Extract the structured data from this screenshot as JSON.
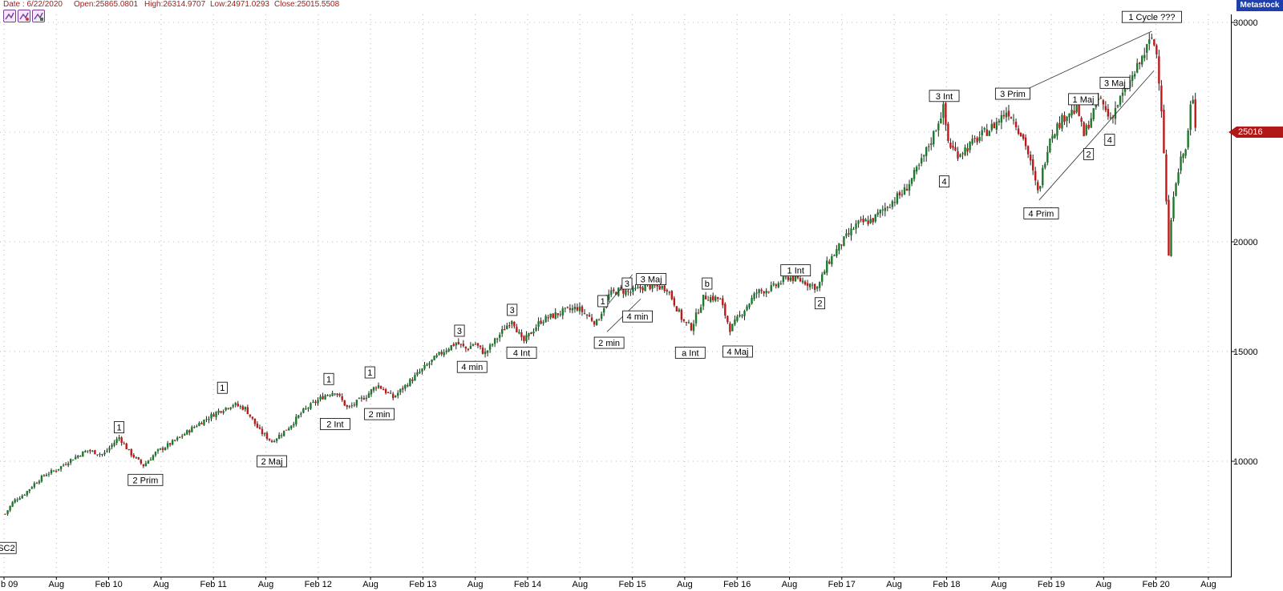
{
  "header": {
    "date": "Date : 6/22/2020",
    "open": "Open:25865.0801",
    "high": "High:26314.9707",
    "low": "Low:24971.0293",
    "close": "Close:25015.5508",
    "brand": "Metastock"
  },
  "toolbar": {
    "icons": [
      "chart-tool-icon-1",
      "chart-tool-icon-2",
      "chart-tool-icon-3"
    ]
  },
  "colors": {
    "up": "#1a7a2a",
    "down": "#c01818",
    "brand": "#1f3fae",
    "header_text": "#a02020",
    "grid": "#b8b8b8",
    "price_tag": "#b01818"
  },
  "current_price_label": "25016",
  "chart_data": {
    "type": "candlestick",
    "x_tick_labels": [
      "b 09",
      "Aug",
      "Feb 10",
      "Aug",
      "Feb 11",
      "Aug",
      "Feb 12",
      "Aug",
      "Feb 13",
      "Aug",
      "Feb 14",
      "Aug",
      "Feb 15",
      "Aug",
      "Feb 16",
      "Aug",
      "Feb 17",
      "Aug",
      "Feb 18",
      "Aug",
      "Feb 19",
      "Aug",
      "Feb 20",
      "Aug"
    ],
    "y_tick_labels": [
      "30000",
      "25000",
      "20000",
      "15000",
      "10000"
    ],
    "y_ticks": [
      30000,
      25000,
      20000,
      15000,
      10000
    ],
    "ylim": [
      5000,
      31000
    ],
    "xlim": [
      2009.12,
      2020.8
    ],
    "grid": true,
    "current_price": 25016,
    "series": [
      {
        "x": 2009.17,
        "y": 7600
      },
      {
        "x": 2009.25,
        "y": 8200
      },
      {
        "x": 2009.35,
        "y": 8500
      },
      {
        "x": 2009.45,
        "y": 9000
      },
      {
        "x": 2009.55,
        "y": 9400
      },
      {
        "x": 2009.65,
        "y": 9600
      },
      {
        "x": 2009.8,
        "y": 10100
      },
      {
        "x": 2009.95,
        "y": 10500
      },
      {
        "x": 2010.1,
        "y": 10300
      },
      {
        "x": 2010.25,
        "y": 11100
      },
      {
        "x": 2010.35,
        "y": 10400
      },
      {
        "x": 2010.48,
        "y": 9800
      },
      {
        "x": 2010.6,
        "y": 10400
      },
      {
        "x": 2010.8,
        "y": 11000
      },
      {
        "x": 2011.0,
        "y": 11700
      },
      {
        "x": 2011.2,
        "y": 12300
      },
      {
        "x": 2011.33,
        "y": 12600
      },
      {
        "x": 2011.45,
        "y": 12400
      },
      {
        "x": 2011.58,
        "y": 11400
      },
      {
        "x": 2011.7,
        "y": 10900
      },
      {
        "x": 2011.85,
        "y": 11500
      },
      {
        "x": 2012.0,
        "y": 12300
      },
      {
        "x": 2012.2,
        "y": 13000
      },
      {
        "x": 2012.3,
        "y": 13200
      },
      {
        "x": 2012.42,
        "y": 12400
      },
      {
        "x": 2012.6,
        "y": 13000
      },
      {
        "x": 2012.7,
        "y": 13500
      },
      {
        "x": 2012.85,
        "y": 12900
      },
      {
        "x": 2013.0,
        "y": 13600
      },
      {
        "x": 2013.2,
        "y": 14500
      },
      {
        "x": 2013.35,
        "y": 15100
      },
      {
        "x": 2013.45,
        "y": 15400
      },
      {
        "x": 2013.55,
        "y": 15100
      },
      {
        "x": 2013.62,
        "y": 15400
      },
      {
        "x": 2013.72,
        "y": 14900
      },
      {
        "x": 2013.85,
        "y": 15700
      },
      {
        "x": 2013.98,
        "y": 16500
      },
      {
        "x": 2014.08,
        "y": 15400
      },
      {
        "x": 2014.25,
        "y": 16400
      },
      {
        "x": 2014.45,
        "y": 16800
      },
      {
        "x": 2014.6,
        "y": 17000
      },
      {
        "x": 2014.78,
        "y": 16300
      },
      {
        "x": 2014.9,
        "y": 17600
      },
      {
        "x": 2015.0,
        "y": 17800
      },
      {
        "x": 2015.1,
        "y": 17700
      },
      {
        "x": 2015.25,
        "y": 18000
      },
      {
        "x": 2015.45,
        "y": 17900
      },
      {
        "x": 2015.6,
        "y": 16400
      },
      {
        "x": 2015.68,
        "y": 16100
      },
      {
        "x": 2015.8,
        "y": 17500
      },
      {
        "x": 2015.95,
        "y": 17400
      },
      {
        "x": 2016.05,
        "y": 16000
      },
      {
        "x": 2016.12,
        "y": 16500
      },
      {
        "x": 2016.3,
        "y": 17700
      },
      {
        "x": 2016.45,
        "y": 17900
      },
      {
        "x": 2016.6,
        "y": 18400
      },
      {
        "x": 2016.75,
        "y": 18200
      },
      {
        "x": 2016.88,
        "y": 17900
      },
      {
        "x": 2016.97,
        "y": 19000
      },
      {
        "x": 2017.1,
        "y": 19900
      },
      {
        "x": 2017.25,
        "y": 20800
      },
      {
        "x": 2017.4,
        "y": 21000
      },
      {
        "x": 2017.55,
        "y": 21700
      },
      {
        "x": 2017.7,
        "y": 22300
      },
      {
        "x": 2017.85,
        "y": 23500
      },
      {
        "x": 2017.97,
        "y": 24800
      },
      {
        "x": 2018.07,
        "y": 26100
      },
      {
        "x": 2018.12,
        "y": 24500
      },
      {
        "x": 2018.2,
        "y": 24000
      },
      {
        "x": 2018.3,
        "y": 24300
      },
      {
        "x": 2018.42,
        "y": 24800
      },
      {
        "x": 2018.55,
        "y": 25300
      },
      {
        "x": 2018.68,
        "y": 26000
      },
      {
        "x": 2018.75,
        "y": 25500
      },
      {
        "x": 2018.85,
        "y": 24500
      },
      {
        "x": 2018.97,
        "y": 22200
      },
      {
        "x": 2019.08,
        "y": 24800
      },
      {
        "x": 2019.25,
        "y": 25900
      },
      {
        "x": 2019.35,
        "y": 26000
      },
      {
        "x": 2019.4,
        "y": 24800
      },
      {
        "x": 2019.55,
        "y": 26600
      },
      {
        "x": 2019.65,
        "y": 25600
      },
      {
        "x": 2019.75,
        "y": 26500
      },
      {
        "x": 2019.9,
        "y": 27800
      },
      {
        "x": 2020.05,
        "y": 29300
      },
      {
        "x": 2020.1,
        "y": 28500
      },
      {
        "x": 2020.15,
        "y": 25600
      },
      {
        "x": 2020.21,
        "y": 19400
      },
      {
        "x": 2020.26,
        "y": 22500
      },
      {
        "x": 2020.32,
        "y": 23700
      },
      {
        "x": 2020.38,
        "y": 24300
      },
      {
        "x": 2020.43,
        "y": 26800
      },
      {
        "x": 2020.47,
        "y": 25016
      }
    ],
    "annotations": [
      {
        "label": "SC2",
        "x": 2009.18,
        "y": 6050
      },
      {
        "label": "1",
        "x": 2010.25,
        "y": 11550
      },
      {
        "label": "2 Prim",
        "x": 2010.5,
        "y": 9150
      },
      {
        "label": "1",
        "x": 2011.23,
        "y": 13350
      },
      {
        "label": "2 Maj",
        "x": 2011.7,
        "y": 10000
      },
      {
        "label": "1",
        "x": 2012.24,
        "y": 13750
      },
      {
        "label": "2 Int",
        "x": 2012.3,
        "y": 11700
      },
      {
        "label": "1",
        "x": 2012.63,
        "y": 14050
      },
      {
        "label": "2 min",
        "x": 2012.72,
        "y": 12150
      },
      {
        "label": "3",
        "x": 2013.48,
        "y": 15950
      },
      {
        "label": "4 min",
        "x": 2013.6,
        "y": 14300
      },
      {
        "label": "3",
        "x": 2013.98,
        "y": 16900
      },
      {
        "label": "4 Int",
        "x": 2014.07,
        "y": 14950
      },
      {
        "label": "1",
        "x": 2014.84,
        "y": 17300
      },
      {
        "label": "2 min",
        "x": 2014.9,
        "y": 15400
      },
      {
        "label": "3",
        "x": 2015.07,
        "y": 18100
      },
      {
        "label": "4 min",
        "x": 2015.17,
        "y": 16600
      },
      {
        "label": "3 Maj",
        "x": 2015.3,
        "y": 18300
      },
      {
        "label": "b",
        "x": 2015.83,
        "y": 18100
      },
      {
        "label": "a Int",
        "x": 2015.67,
        "y": 14950
      },
      {
        "label": "4 Maj",
        "x": 2016.12,
        "y": 15000
      },
      {
        "label": "1 Int",
        "x": 2016.67,
        "y": 18700
      },
      {
        "label": "2",
        "x": 2016.9,
        "y": 17200
      },
      {
        "label": "3 Int",
        "x": 2018.08,
        "y": 26650
      },
      {
        "label": "4",
        "x": 2018.08,
        "y": 22750
      },
      {
        "label": "3 Prim",
        "x": 2018.73,
        "y": 26750
      },
      {
        "label": "4 Prim",
        "x": 2019.0,
        "y": 21300
      },
      {
        "label": "1 Maj",
        "x": 2019.4,
        "y": 26500
      },
      {
        "label": "2",
        "x": 2019.45,
        "y": 24000
      },
      {
        "label": "3 Maj",
        "x": 2019.7,
        "y": 27250
      },
      {
        "label": "4",
        "x": 2019.65,
        "y": 24650
      },
      {
        "label": "1 Cycle ???",
        "x": 2020.05,
        "y": 30250
      }
    ],
    "trendlines": [
      {
        "x1": 2014.88,
        "y1": 17100,
        "x2": 2015.12,
        "y2": 18500
      },
      {
        "x1": 2014.88,
        "y1": 15900,
        "x2": 2015.2,
        "y2": 17400
      },
      {
        "x1": 2018.75,
        "y1": 26700,
        "x2": 2020.05,
        "y2": 29600
      },
      {
        "x1": 2018.98,
        "y1": 21900,
        "x2": 2020.07,
        "y2": 27800
      }
    ]
  }
}
